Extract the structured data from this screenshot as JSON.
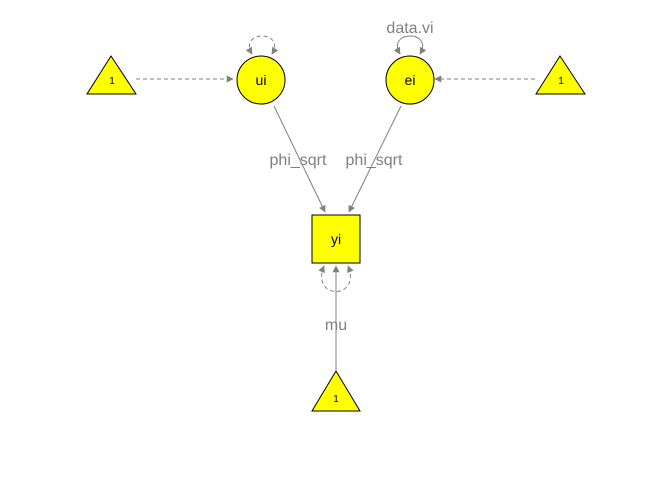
{
  "nodes": {
    "ui": {
      "label": "ui"
    },
    "ei": {
      "label": "ei"
    },
    "yi": {
      "label": "yi"
    },
    "const_left": {
      "label": "1"
    },
    "const_right": {
      "label": "1"
    },
    "const_bottom": {
      "label": "1"
    }
  },
  "edges": {
    "ui_to_yi": {
      "label": "phi_sqrt"
    },
    "ei_to_yi": {
      "label": "phi_sqrt"
    },
    "const_to_yi": {
      "label": "mu"
    },
    "ei_variance": {
      "label": "data.vi"
    }
  },
  "colors": {
    "node_fill": "#ffff00",
    "edge": "#808080",
    "outline": "#000000"
  }
}
